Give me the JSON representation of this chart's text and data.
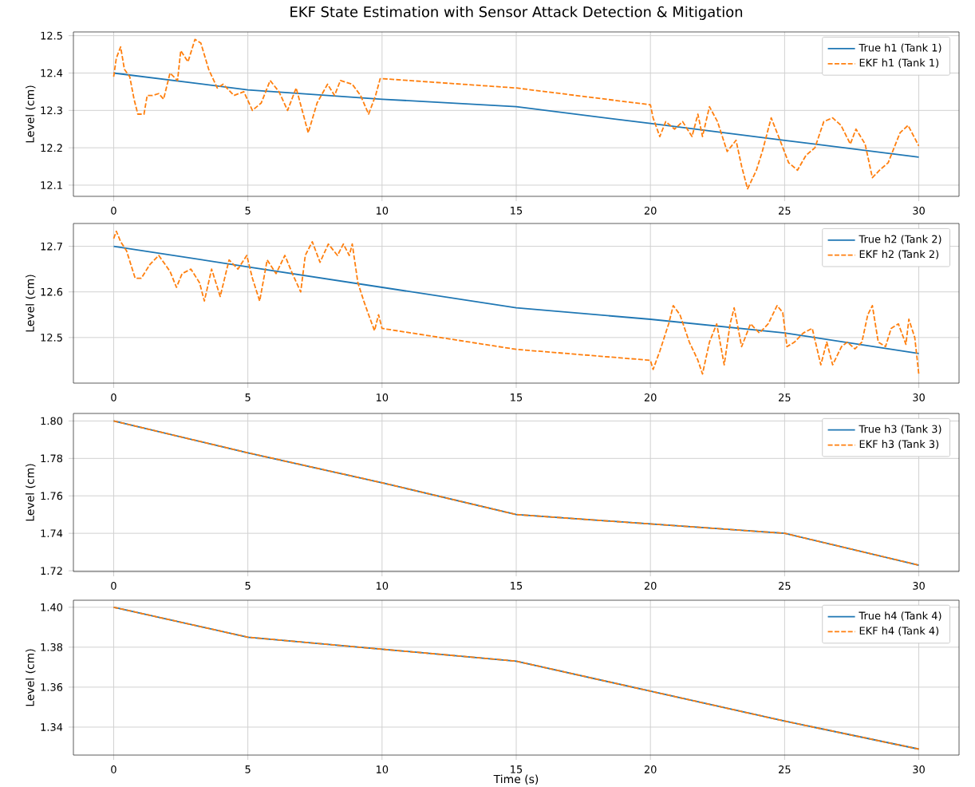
{
  "chart_data": [
    {
      "type": "line",
      "title": "EKF State Estimation with Sensor Attack Detection & Mitigation",
      "ylabel": "Level (cm)",
      "xlim": [
        -1.5,
        31.5
      ],
      "ylim": [
        12.07,
        12.51
      ],
      "xticks": [
        0,
        5,
        10,
        15,
        20,
        25,
        30
      ],
      "yticks": [
        12.1,
        12.2,
        12.3,
        12.4,
        12.5
      ],
      "grid": true,
      "legend": "top right",
      "series": [
        {
          "name": "True h1 (Tank 1)",
          "color": "#1f77b4",
          "line_style": "solid",
          "x": [
            0,
            5,
            10,
            15,
            20,
            25,
            30
          ],
          "values": [
            12.4,
            12.355,
            12.33,
            12.31,
            12.265,
            12.22,
            12.175
          ]
        },
        {
          "name": "EKF h1 (Tank 1)",
          "color": "#ff7f0e",
          "line_style": "dashed",
          "x": [
            0,
            0.1,
            0.26,
            0.4,
            0.6,
            0.76,
            0.9,
            1.13,
            1.25,
            1.45,
            1.68,
            1.86,
            2.1,
            2.38,
            2.5,
            2.77,
            3.03,
            3.25,
            3.54,
            3.86,
            4.08,
            4.48,
            4.85,
            5.17,
            5.5,
            5.83,
            6.16,
            6.48,
            6.8,
            7.25,
            7.58,
            7.97,
            8.23,
            8.45,
            8.89,
            9.2,
            9.5,
            9.76,
            9.93,
            10,
            15,
            20,
            20.1,
            20.35,
            20.57,
            20.9,
            21.2,
            21.55,
            21.77,
            21.94,
            22.2,
            22.5,
            22.86,
            23.19,
            23.4,
            23.62,
            23.95,
            24.17,
            24.5,
            24.83,
            25.15,
            25.48,
            25.8,
            26.13,
            26.46,
            26.79,
            27.1,
            27.45,
            27.66,
            28.0,
            28.27,
            28.54,
            28.86,
            29.3,
            29.6,
            30
          ],
          "values": [
            12.39,
            12.44,
            12.47,
            12.41,
            12.39,
            12.33,
            12.29,
            12.29,
            12.34,
            12.34,
            12.345,
            12.33,
            12.4,
            12.38,
            12.46,
            12.43,
            12.49,
            12.48,
            12.41,
            12.36,
            12.37,
            12.34,
            12.35,
            12.3,
            12.32,
            12.38,
            12.35,
            12.3,
            12.36,
            12.24,
            12.32,
            12.37,
            12.34,
            12.38,
            12.37,
            12.34,
            12.29,
            12.34,
            12.385,
            12.385,
            12.36,
            12.315,
            12.28,
            12.23,
            12.27,
            12.25,
            12.27,
            12.23,
            12.29,
            12.23,
            12.31,
            12.27,
            12.19,
            12.22,
            12.15,
            12.09,
            12.14,
            12.19,
            12.28,
            12.22,
            12.16,
            12.14,
            12.18,
            12.2,
            12.27,
            12.28,
            12.26,
            12.21,
            12.25,
            12.21,
            12.12,
            12.14,
            12.16,
            12.24,
            12.26,
            12.205
          ]
        }
      ]
    },
    {
      "type": "line",
      "ylabel": "Level (cm)",
      "xlim": [
        -1.5,
        31.5
      ],
      "ylim": [
        12.4,
        12.75
      ],
      "xticks": [
        0,
        5,
        10,
        15,
        20,
        25,
        30
      ],
      "yticks": [
        12.5,
        12.6,
        12.7
      ],
      "grid": true,
      "legend": "top right",
      "series": [
        {
          "name": "True h2 (Tank 2)",
          "color": "#1f77b4",
          "line_style": "solid",
          "x": [
            0,
            5,
            10,
            15,
            20,
            25,
            30
          ],
          "values": [
            12.7,
            12.655,
            12.61,
            12.565,
            12.54,
            12.51,
            12.465
          ]
        },
        {
          "name": "EKF h2 (Tank 2)",
          "color": "#ff7f0e",
          "line_style": "dashed",
          "x": [
            0,
            0.1,
            0.26,
            0.48,
            0.8,
            1.03,
            1.35,
            1.68,
            1.86,
            2.1,
            2.34,
            2.55,
            2.88,
            3.2,
            3.38,
            3.65,
            3.97,
            4.3,
            4.63,
            4.96,
            5.17,
            5.44,
            5.72,
            6.05,
            6.38,
            6.66,
            6.97,
            7.14,
            7.4,
            7.69,
            8.0,
            8.34,
            8.56,
            8.78,
            8.89,
            9.1,
            9.32,
            9.5,
            9.72,
            9.87,
            10,
            15,
            20,
            20.1,
            20.35,
            20.68,
            20.85,
            21.1,
            21.45,
            21.77,
            21.94,
            22.2,
            22.47,
            22.75,
            22.97,
            23.12,
            23.4,
            23.73,
            24.06,
            24.39,
            24.72,
            24.93,
            25.09,
            25.37,
            25.7,
            26.03,
            26.35,
            26.57,
            26.79,
            27.12,
            27.34,
            27.62,
            27.88,
            28.1,
            28.27,
            28.49,
            28.76,
            28.97,
            29.24,
            29.52,
            29.63,
            29.85,
            30
          ],
          "values": [
            12.717,
            12.733,
            12.71,
            12.69,
            12.63,
            12.63,
            12.66,
            12.68,
            12.665,
            12.645,
            12.61,
            12.64,
            12.65,
            12.62,
            12.58,
            12.65,
            12.59,
            12.67,
            12.65,
            12.68,
            12.63,
            12.58,
            12.67,
            12.64,
            12.68,
            12.64,
            12.6,
            12.68,
            12.71,
            12.665,
            12.705,
            12.68,
            12.705,
            12.68,
            12.705,
            12.62,
            12.58,
            12.55,
            12.515,
            12.55,
            12.52,
            12.474,
            12.45,
            12.43,
            12.47,
            12.53,
            12.57,
            12.55,
            12.49,
            12.45,
            12.42,
            12.49,
            12.53,
            12.44,
            12.53,
            12.565,
            12.48,
            12.53,
            12.51,
            12.53,
            12.57,
            12.555,
            12.48,
            12.49,
            12.51,
            12.52,
            12.44,
            12.49,
            12.44,
            12.48,
            12.49,
            12.475,
            12.49,
            12.55,
            12.57,
            12.49,
            12.48,
            12.52,
            12.53,
            12.485,
            12.54,
            12.5,
            12.42
          ]
        }
      ]
    },
    {
      "type": "line",
      "ylabel": "Level (cm)",
      "xlim": [
        -1.5,
        31.5
      ],
      "ylim": [
        1.7196,
        1.804
      ],
      "xticks": [
        0,
        5,
        10,
        15,
        20,
        25,
        30
      ],
      "yticks": [
        1.72,
        1.74,
        1.76,
        1.78,
        {
          "value": 1.8,
          "label": "1.80"
        }
      ],
      "grid": true,
      "legend": "top right",
      "series": [
        {
          "name": "True h3 (Tank 3)",
          "color": "#1f77b4",
          "line_style": "solid",
          "x": [
            0,
            5,
            10,
            15,
            20,
            25,
            30
          ],
          "values": [
            1.8,
            1.783,
            1.767,
            1.75,
            1.745,
            1.74,
            1.723
          ]
        },
        {
          "name": "EKF h3 (Tank 3)",
          "color": "#ff7f0e",
          "line_style": "dashed",
          "x": [
            0,
            5,
            10,
            15,
            20,
            25,
            30
          ],
          "values": [
            1.8,
            1.783,
            1.767,
            1.75,
            1.745,
            1.74,
            1.723
          ]
        }
      ]
    },
    {
      "type": "line",
      "ylabel": "Level (cm)",
      "xlabel": "Time (s)",
      "xlim": [
        -1.5,
        31.5
      ],
      "ylim": [
        1.326,
        1.4035
      ],
      "xticks": [
        0,
        5,
        10,
        15,
        20,
        25,
        30
      ],
      "yticks": [
        1.34,
        1.36,
        1.38,
        {
          "value": 1.4,
          "label": "1.40"
        }
      ],
      "grid": true,
      "legend": "top right",
      "series": [
        {
          "name": "True h4 (Tank 4)",
          "color": "#1f77b4",
          "line_style": "solid",
          "x": [
            0,
            5,
            10,
            15,
            20,
            25,
            30
          ],
          "values": [
            1.4,
            1.385,
            1.379,
            1.373,
            1.358,
            1.343,
            1.329
          ]
        },
        {
          "name": "EKF h4 (Tank 4)",
          "color": "#ff7f0e",
          "line_style": "dashed",
          "x": [
            0,
            5,
            10,
            15,
            20,
            25,
            30
          ],
          "values": [
            1.4,
            1.385,
            1.379,
            1.373,
            1.358,
            1.343,
            1.329
          ]
        }
      ]
    }
  ]
}
